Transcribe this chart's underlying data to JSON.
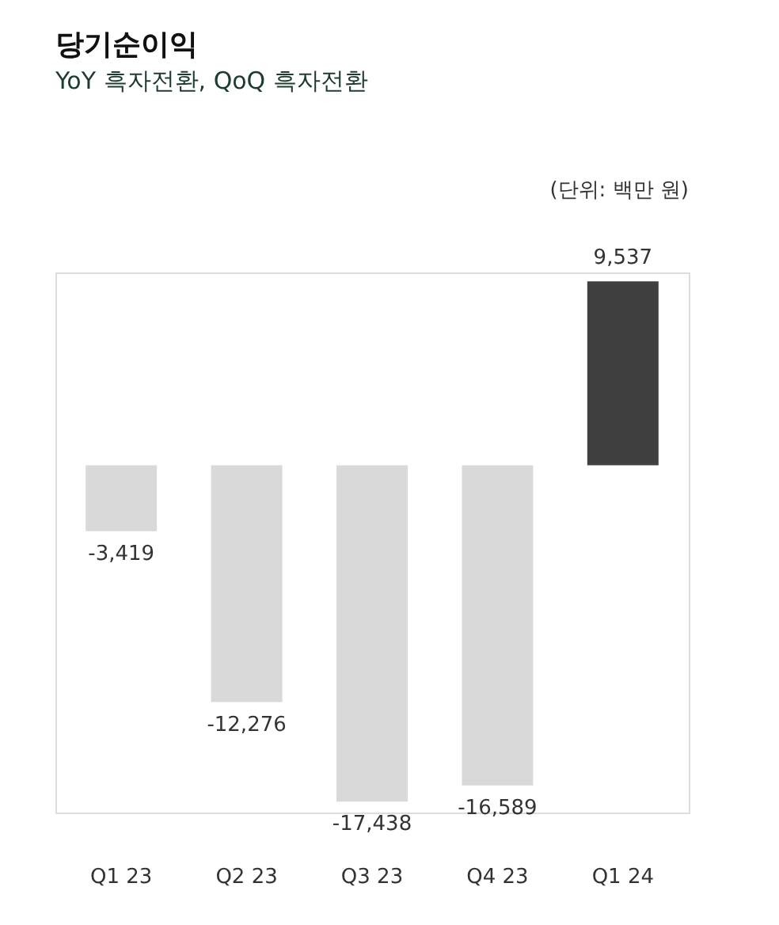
{
  "chart_data": {
    "type": "bar",
    "title": "당기순이익",
    "subtitle": "YoY 흑자전환, QoQ 흑자전환",
    "annotations": [
      "(단위: 백만 원)"
    ],
    "categories": [
      "Q1 23",
      "Q2 23",
      "Q3 23",
      "Q4 23",
      "Q1 24"
    ],
    "values": [
      -3419,
      -12276,
      -17438,
      -16589,
      9537
    ],
    "value_labels": [
      "-3,419",
      "-12,276",
      "-17,438",
      "-16,589",
      "9,537"
    ],
    "colors": [
      "#d9d9d9",
      "#d9d9d9",
      "#d9d9d9",
      "#d9d9d9",
      "#404040"
    ],
    "grid": false
  }
}
